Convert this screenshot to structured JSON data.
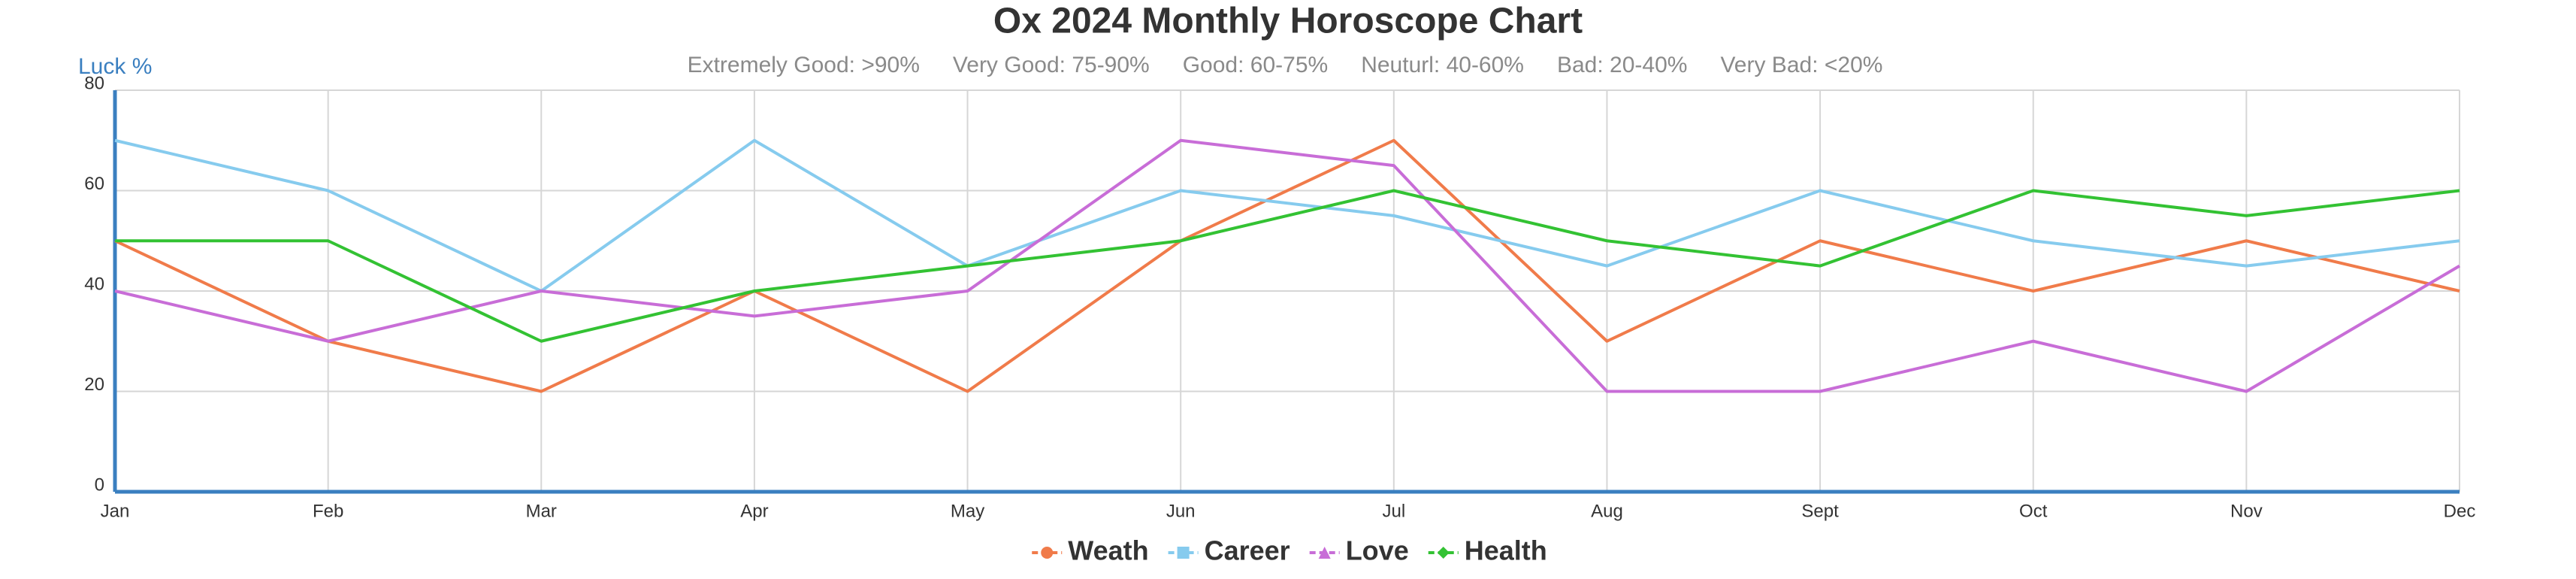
{
  "chart_data": {
    "type": "line",
    "title": "Ox 2024 Monthly Horoscope Chart",
    "y_label": "Luck %",
    "subtitle_items": [
      "Extremely Good: >90%",
      "Very Good: 75-90%",
      "Good: 60-75%",
      "Neuturl: 40-60%",
      "Bad: 20-40%",
      "Very Bad: <20%"
    ],
    "categories": [
      "Jan",
      "Feb",
      "Mar",
      "Apr",
      "May",
      "Jun",
      "Jul",
      "Aug",
      "Sept",
      "Oct",
      "Nov",
      "Dec"
    ],
    "series": [
      {
        "name": "Weath",
        "color": "#f07b4a",
        "marker": "circle",
        "values": [
          50,
          30,
          20,
          40,
          20,
          50,
          70,
          30,
          50,
          40,
          50,
          40
        ]
      },
      {
        "name": "Career",
        "color": "#86cbee",
        "marker": "square",
        "values": [
          70,
          60,
          40,
          70,
          45,
          60,
          55,
          45,
          60,
          50,
          45,
          50
        ]
      },
      {
        "name": "Love",
        "color": "#c86dd7",
        "marker": "triangle",
        "values": [
          40,
          30,
          40,
          35,
          40,
          70,
          65,
          20,
          20,
          30,
          20,
          45
        ]
      },
      {
        "name": "Health",
        "color": "#33c233",
        "marker": "diamond",
        "values": [
          50,
          50,
          30,
          40,
          45,
          50,
          60,
          50,
          45,
          60,
          55,
          60
        ]
      }
    ],
    "ylim": [
      0,
      80
    ],
    "yticks": [
      0,
      20,
      40,
      60,
      80
    ],
    "grid": true
  }
}
